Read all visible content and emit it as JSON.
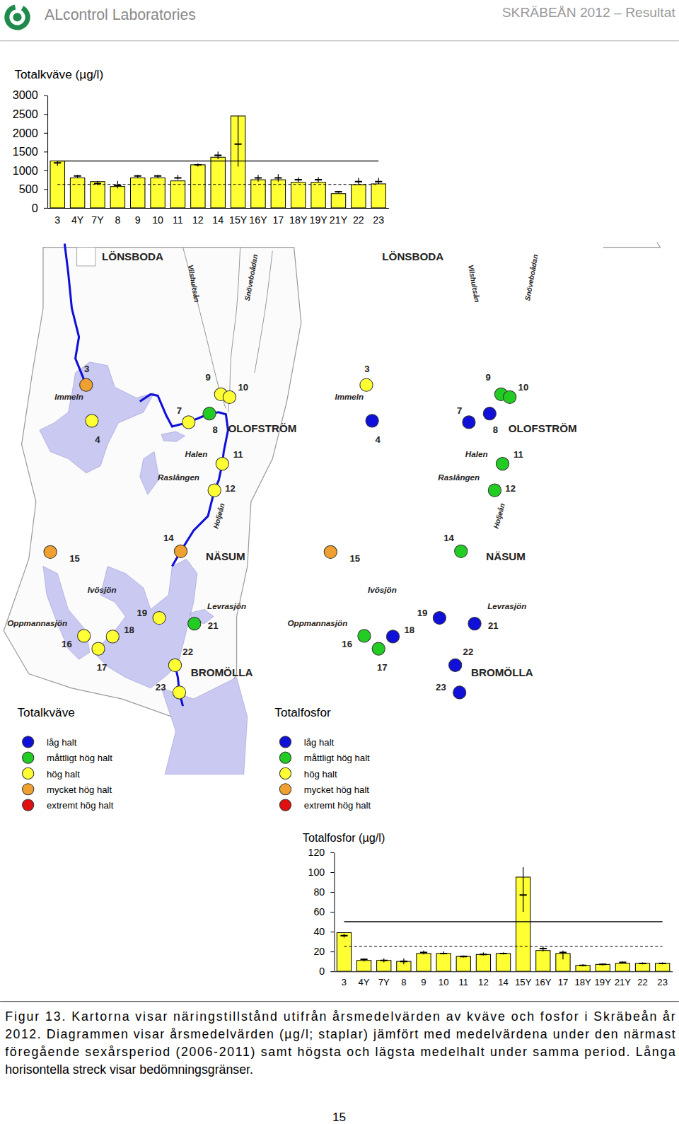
{
  "header": {
    "company": "ALcontrol Laboratories",
    "title": "SKRÄBEÅN 2012 – Resultat"
  },
  "chart_data": [
    {
      "type": "bar",
      "title": "Totalkväve (µg/l)",
      "categories": [
        "3",
        "4Y",
        "7Y",
        "8",
        "9",
        "10",
        "11",
        "12",
        "14",
        "15Y",
        "16Y",
        "17",
        "18Y",
        "19Y",
        "21Y",
        "22",
        "23"
      ],
      "values": [
        1250,
        800,
        700,
        570,
        800,
        800,
        720,
        1150,
        1350,
        2450,
        750,
        750,
        680,
        680,
        380,
        620,
        640
      ],
      "previous_mean": [
        1200,
        850,
        650,
        600,
        850,
        850,
        800,
        1150,
        1400,
        1700,
        800,
        800,
        750,
        750,
        430,
        700,
        700
      ],
      "previous_min": [
        1120,
        800,
        600,
        520,
        800,
        800,
        750,
        1100,
        1300,
        1100,
        700,
        700,
        680,
        680,
        400,
        620,
        640
      ],
      "previous_max": [
        1260,
        880,
        720,
        720,
        880,
        880,
        880,
        1180,
        1500,
        2450,
        880,
        900,
        820,
        820,
        450,
        800,
        800
      ],
      "thresholds": [
        {
          "value": 625,
          "line_style": "dashed"
        },
        {
          "value": 1250,
          "line_style": "solid"
        }
      ],
      "color": "#ffff33",
      "ylim": [
        0,
        3000
      ],
      "yticks": [
        0,
        500,
        1000,
        1500,
        2000,
        2500,
        3000
      ],
      "grid": false
    },
    {
      "type": "bar",
      "title": "Totalfosfor (µg/l)",
      "categories": [
        "3",
        "4Y",
        "7Y",
        "8",
        "9",
        "10",
        "11",
        "12",
        "14",
        "15Y",
        "16Y",
        "17",
        "18Y",
        "19Y",
        "21Y",
        "22",
        "23"
      ],
      "values": [
        39,
        11,
        11,
        10,
        18,
        18,
        15,
        17,
        18,
        95,
        21,
        18,
        6,
        7,
        8,
        8,
        8
      ],
      "previous_mean": [
        36,
        12,
        11,
        10,
        19,
        18,
        15,
        17,
        18,
        77,
        23,
        19,
        6,
        7,
        9,
        8,
        8
      ],
      "previous_min": [
        34,
        10,
        9,
        7,
        17,
        17,
        14,
        16,
        17,
        60,
        20,
        12,
        5,
        6,
        8,
        7,
        7
      ],
      "previous_max": [
        38,
        13,
        13,
        13,
        21,
        20,
        16,
        19,
        19,
        105,
        25,
        21,
        7,
        8,
        10,
        9,
        9
      ],
      "thresholds": [
        {
          "value": 25,
          "line_style": "dashed"
        },
        {
          "value": 50,
          "line_style": "solid"
        }
      ],
      "color": "#ffff33",
      "ylim": [
        0,
        120
      ],
      "yticks": [
        0,
        20,
        40,
        60,
        80,
        100,
        120
      ],
      "grid": false
    }
  ],
  "maps": [
    {
      "title": "Totalkväve",
      "classes": [
        {
          "label": "låg halt",
          "color": "#1010d8"
        },
        {
          "label": "måttligt hög halt",
          "color": "#22cc22"
        },
        {
          "label": "hög halt",
          "color": "#ffff33"
        },
        {
          "label": "mycket hög halt",
          "color": "#f0a030"
        },
        {
          "label": "extremt hög halt",
          "color": "#e01010"
        }
      ],
      "places": [
        "LÖNSBODA",
        "Immeln",
        "Vilshultsån",
        "Snöveboådan",
        "OLOFSTRÖM",
        "Halen",
        "Raslången",
        "Holjeån",
        "NÄSUM",
        "Ivösjön",
        "Oppmannasjön",
        "Levrasjön",
        "BROMÖLLA"
      ],
      "stations": [
        {
          "label": "3",
          "class": 3
        },
        {
          "label": "4",
          "class": 2
        },
        {
          "label": "7",
          "class": 2
        },
        {
          "label": "8",
          "class": 1
        },
        {
          "label": "9",
          "class": 2
        },
        {
          "label": "10",
          "class": 2
        },
        {
          "label": "11",
          "class": 2
        },
        {
          "label": "12",
          "class": 2
        },
        {
          "label": "14",
          "class": 3
        },
        {
          "label": "15",
          "class": 3
        },
        {
          "label": "16",
          "class": 2
        },
        {
          "label": "17",
          "class": 2
        },
        {
          "label": "18",
          "class": 2
        },
        {
          "label": "19",
          "class": 2
        },
        {
          "label": "21",
          "class": 1
        },
        {
          "label": "22",
          "class": 2
        },
        {
          "label": "23",
          "class": 2
        }
      ]
    },
    {
      "title": "Totalfosfor",
      "classes": [
        {
          "label": "låg halt",
          "color": "#1010d8"
        },
        {
          "label": "måttligt hög halt",
          "color": "#22cc22"
        },
        {
          "label": "hög halt",
          "color": "#ffff33"
        },
        {
          "label": "mycket hög halt",
          "color": "#f0a030"
        },
        {
          "label": "extremt hög halt",
          "color": "#e01010"
        }
      ],
      "places": [
        "LÖNSBODA",
        "Immeln",
        "Vilshultsån",
        "Snöveboådan",
        "OLOFSTRÖM",
        "Halen",
        "Raslången",
        "Holjeån",
        "NÄSUM",
        "Ivösjön",
        "Oppmannasjön",
        "Levrasjön",
        "BROMÖLLA"
      ],
      "stations": [
        {
          "label": "3",
          "class": 2
        },
        {
          "label": "4",
          "class": 0
        },
        {
          "label": "7",
          "class": 0
        },
        {
          "label": "8",
          "class": 0
        },
        {
          "label": "9",
          "class": 1
        },
        {
          "label": "10",
          "class": 1
        },
        {
          "label": "11",
          "class": 1
        },
        {
          "label": "12",
          "class": 1
        },
        {
          "label": "14",
          "class": 1
        },
        {
          "label": "15",
          "class": 3
        },
        {
          "label": "16",
          "class": 1
        },
        {
          "label": "17",
          "class": 1
        },
        {
          "label": "18",
          "class": 0
        },
        {
          "label": "19",
          "class": 0
        },
        {
          "label": "21",
          "class": 0
        },
        {
          "label": "22",
          "class": 0
        },
        {
          "label": "23",
          "class": 0
        }
      ]
    }
  ],
  "caption": [
    "Figur 13. Kartorna visar näringstillstånd utifrån årsmedelvärden av kväve och fosfor i Skräbeån år",
    "2012. Diagrammen visar årsmedelvärden (µg/l; staplar) jämfört med medelvärdena under den närmast",
    "föregående sexårsperiod (2006-2011) samt högsta och lägsta medelhalt under samma period. Långa",
    "horisontella streck visar bedömningsgränser."
  ],
  "page_number": "15"
}
